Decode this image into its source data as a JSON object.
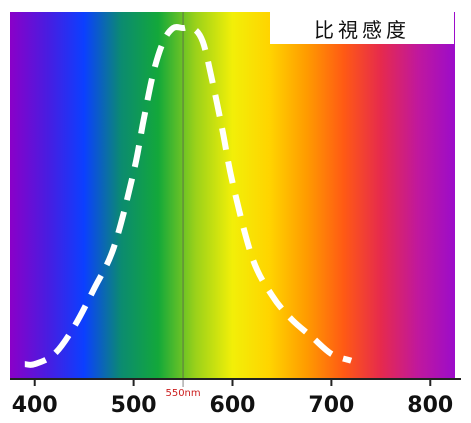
{
  "chart_data": {
    "type": "line",
    "title": "比視感度",
    "xlabel": "",
    "ylabel": "",
    "xlim": [
      375,
      825
    ],
    "ylim": [
      0,
      1
    ],
    "x_ticks": [
      "400",
      "500",
      "600",
      "700",
      "800"
    ],
    "marker": {
      "x": 550,
      "label": "550nm",
      "color": "#cc1f1f"
    },
    "series": [
      {
        "style": "dashed",
        "color": "#ffffff",
        "x": [
          390,
          400,
          420,
          440,
          460,
          480,
          500,
          510,
          520,
          530,
          540,
          550,
          560,
          570,
          580,
          590,
          600,
          620,
          640,
          660,
          680,
          700,
          720
        ],
        "y": [
          0.02,
          0.02,
          0.05,
          0.13,
          0.24,
          0.36,
          0.58,
          0.73,
          0.87,
          0.96,
          1.0,
          1.0,
          1.0,
          0.96,
          0.84,
          0.7,
          0.55,
          0.33,
          0.22,
          0.15,
          0.1,
          0.05,
          0.03
        ]
      }
    ],
    "background": {
      "type": "spectrum-gradient",
      "colors": [
        "#8a00c8",
        "#4a1ce0",
        "#0b3fff",
        "#0b8b70",
        "#13a83a",
        "#9ad11a",
        "#f2ef08",
        "#ffd400",
        "#ff9b00",
        "#ff5a14",
        "#e62a4d",
        "#c0189d",
        "#9c0cca"
      ]
    }
  }
}
